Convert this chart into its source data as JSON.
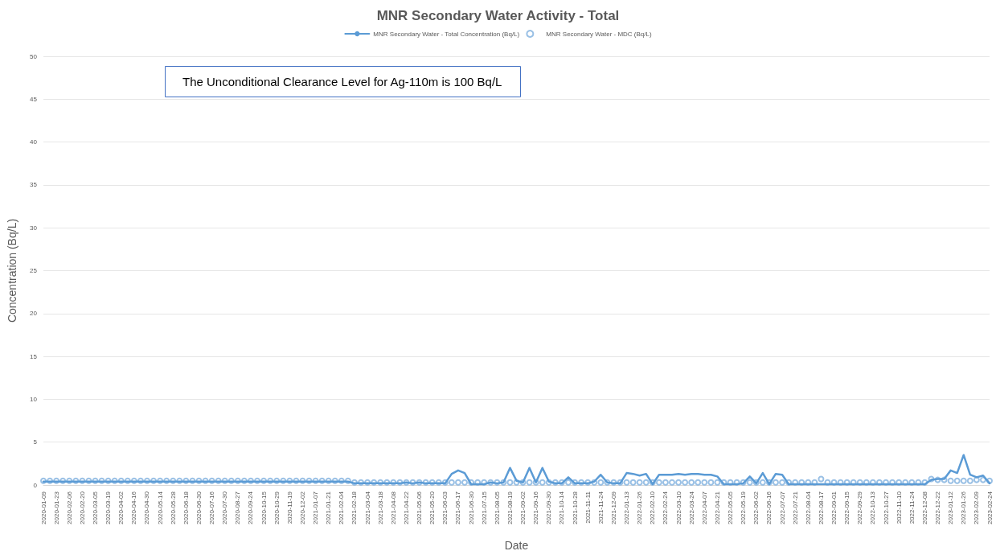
{
  "chart_data": {
    "type": "line",
    "title": "MNR Secondary Water Activity - Total",
    "xlabel": "Date",
    "ylabel": "Concentration (Bq/L)",
    "annotations": [
      "The Unconditional Clearance Level for Ag-110m is 100 Bq/L"
    ],
    "categories": [
      "2020-01-09",
      null,
      "2020-01-23",
      null,
      "2020-02-06",
      null,
      "2020-02-20",
      null,
      "2020-03-05",
      null,
      "2020-03-19",
      null,
      "2020-04-02",
      null,
      "2020-04-16",
      null,
      "2020-04-30",
      null,
      "2020-05-14",
      null,
      "2020-05-28",
      null,
      "2020-06-18",
      null,
      "2020-06-30",
      null,
      "2020-07-16",
      null,
      "2020-07-30",
      null,
      "2020-08-27",
      null,
      "2020-09-24",
      null,
      "2020-10-15",
      null,
      "2020-10-29",
      null,
      "2020-11-19",
      null,
      "2020-12-02",
      null,
      "2021-01-07",
      null,
      "2021-01-21",
      null,
      "2021-02-04",
      null,
      "2021-02-18",
      null,
      "2021-03-04",
      null,
      "2021-03-18",
      null,
      "2021-04-08",
      null,
      "2021-04-22",
      null,
      "2021-05-06",
      null,
      "2021-05-20",
      null,
      "2021-06-03",
      null,
      "2021-06-17",
      null,
      "2021-06-30",
      null,
      "2021-07-15",
      null,
      "2021-08-05",
      null,
      "2021-08-19",
      null,
      "2021-09-02",
      null,
      "2021-09-16",
      null,
      "2021-09-30",
      null,
      "2021-10-14",
      null,
      "2021-10-28",
      null,
      "2021-11-11",
      null,
      "2021-11-24",
      null,
      "2021-12-09",
      null,
      "2022-01-13",
      null,
      "2022-01-26",
      null,
      "2022-02-10",
      null,
      "2022-02-24",
      null,
      "2022-03-10",
      null,
      "2022-03-24",
      null,
      "2022-04-07",
      null,
      "2022-04-21",
      null,
      "2022-05-05",
      null,
      "2022-05-19",
      null,
      "2022-06-02",
      null,
      "2022-06-16",
      null,
      "2022-07-07",
      null,
      "2022-07-21",
      null,
      "2022-08-04",
      null,
      "2022-08-17",
      null,
      "2022-09-01",
      null,
      "2022-09-15",
      null,
      "2022-09-29",
      null,
      "2022-10-13",
      null,
      "2022-10-27",
      null,
      "2022-11-10",
      null,
      "2022-11-24",
      null,
      "2022-12-08",
      null,
      "2022-12-22",
      null,
      "2023-01-12",
      null,
      "2023-01-26",
      null,
      "2023-02-09",
      null,
      "2023-02-24"
    ],
    "series": [
      {
        "name": "MNR Secondary Water - Total Concentration (Bq/L)",
        "marker": "none",
        "line_style": "solid",
        "color": "#5b9bd5",
        "values": [
          0.4,
          0.4,
          0.4,
          0.4,
          0.4,
          0.4,
          0.4,
          0.4,
          0.4,
          0.4,
          0.4,
          0.4,
          0.4,
          0.4,
          0.4,
          0.4,
          0.4,
          0.4,
          0.4,
          0.4,
          0.4,
          0.4,
          0.4,
          0.4,
          0.4,
          0.4,
          0.4,
          0.4,
          0.4,
          0.4,
          0.4,
          0.4,
          0.4,
          0.4,
          0.4,
          0.4,
          0.4,
          0.4,
          0.4,
          0.4,
          0.4,
          0.4,
          0.4,
          0.4,
          0.4,
          0.4,
          0.4,
          0.4,
          0.2,
          0.2,
          0.2,
          0.2,
          0.2,
          0.2,
          0.2,
          0.2,
          0.3,
          0.2,
          0.3,
          0.2,
          0.2,
          0.2,
          0.2,
          1.3,
          1.7,
          1.4,
          0.1,
          0.1,
          0.1,
          0.3,
          0.2,
          0.3,
          2.0,
          0.5,
          0.3,
          2.0,
          0.3,
          2.0,
          0.4,
          0.2,
          0.2,
          0.9,
          0.2,
          0.2,
          0.2,
          0.4,
          1.2,
          0.3,
          0.2,
          0.2,
          1.4,
          1.3,
          1.1,
          1.3,
          0.1,
          1.2,
          1.2,
          1.2,
          1.3,
          1.2,
          1.3,
          1.3,
          1.2,
          1.2,
          1.0,
          0.1,
          0.1,
          0.1,
          0.2,
          1.0,
          0.2,
          1.4,
          0.1,
          1.3,
          1.2,
          0.1,
          0.1,
          0.1,
          0.1,
          0.1,
          0.1,
          0.1,
          0.1,
          0.1,
          0.1,
          0.1,
          0.1,
          0.1,
          0.1,
          0.1,
          0.1,
          0.1,
          0.1,
          0.1,
          0.1,
          0.1,
          0.1,
          0.6,
          0.7,
          0.7,
          1.7,
          1.4,
          3.5,
          1.2,
          0.9,
          1.1,
          0.2
        ]
      },
      {
        "name": "MNR Secondary Water - MDC (Bq/L)",
        "type": "scatter",
        "marker": "circle",
        "color": "#7fb0de",
        "values": [
          0.5,
          0.5,
          0.5,
          0.5,
          0.5,
          0.5,
          0.5,
          0.5,
          0.5,
          0.5,
          0.5,
          0.5,
          0.5,
          0.5,
          0.5,
          0.5,
          0.5,
          0.5,
          0.5,
          0.5,
          0.5,
          0.5,
          0.5,
          0.5,
          0.5,
          0.5,
          0.5,
          0.5,
          0.5,
          0.5,
          0.5,
          0.5,
          0.5,
          0.5,
          0.5,
          0.5,
          0.5,
          0.5,
          0.5,
          0.5,
          0.5,
          0.5,
          0.5,
          0.5,
          0.5,
          0.5,
          0.5,
          0.5,
          0.3,
          0.3,
          0.3,
          0.3,
          0.3,
          0.3,
          0.3,
          0.3,
          0.3,
          0.3,
          0.3,
          0.3,
          0.3,
          0.3,
          0.3,
          0.3,
          0.3,
          0.3,
          0.3,
          0.3,
          0.3,
          0.3,
          0.3,
          0.3,
          0.3,
          0.3,
          0.3,
          0.3,
          0.3,
          0.3,
          0.3,
          0.3,
          0.3,
          0.3,
          0.3,
          0.3,
          0.3,
          0.3,
          0.3,
          0.3,
          0.3,
          0.3,
          0.3,
          0.3,
          0.3,
          0.3,
          0.3,
          0.3,
          0.3,
          0.3,
          0.3,
          0.3,
          0.3,
          0.3,
          0.3,
          0.3,
          0.3,
          0.3,
          0.3,
          0.3,
          0.3,
          0.3,
          0.3,
          0.3,
          0.3,
          0.3,
          0.3,
          0.3,
          0.3,
          0.3,
          0.3,
          0.3,
          0.7,
          0.3,
          0.3,
          0.3,
          0.3,
          0.3,
          0.3,
          0.3,
          0.3,
          0.3,
          0.3,
          0.3,
          0.3,
          0.3,
          0.3,
          0.3,
          0.3,
          0.7,
          0.6,
          0.6,
          0.5,
          0.5,
          0.5,
          0.5,
          0.6,
          0.6,
          0.5
        ]
      }
    ],
    "ylim": [
      0,
      50
    ],
    "yticks": [
      0,
      5,
      10,
      15,
      20,
      25,
      30,
      35,
      40,
      45,
      50
    ],
    "grid": "y",
    "legend": "top"
  }
}
